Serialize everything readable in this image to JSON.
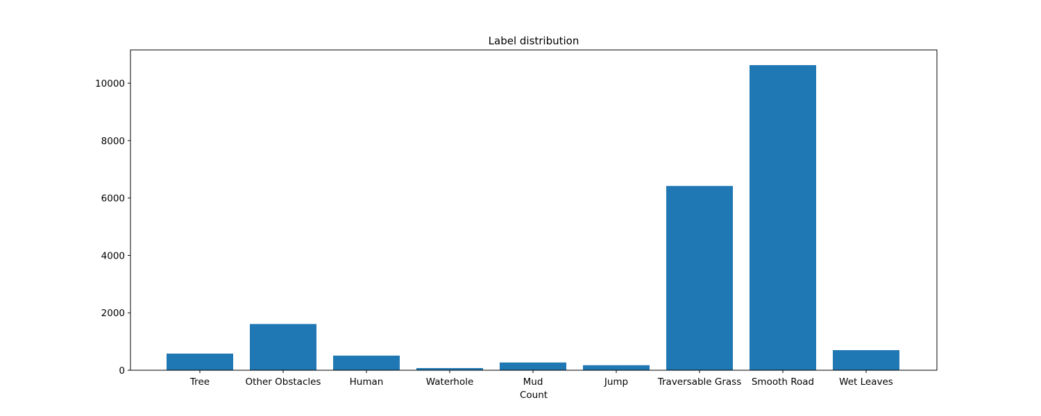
{
  "chart_data": {
    "type": "bar",
    "title": "Label distribution",
    "xlabel": "Count",
    "ylabel": "",
    "categories": [
      "Tree",
      "Other Obstacles",
      "Human",
      "Waterhole",
      "Mud",
      "Jump",
      "Traversable Grass",
      "Smooth Road",
      "Wet Leaves"
    ],
    "values": [
      580,
      1610,
      510,
      75,
      270,
      175,
      6420,
      10630,
      700
    ],
    "ylim": [
      0,
      11160
    ],
    "yticks": [
      0,
      2000,
      4000,
      6000,
      8000,
      10000
    ],
    "color": "#1f77b4",
    "grid": false,
    "legend": "none"
  }
}
